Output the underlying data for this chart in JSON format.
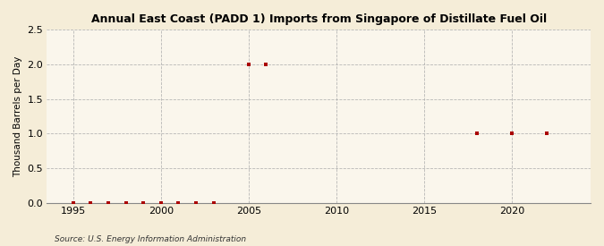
{
  "title": "Annual East Coast (PADD 1) Imports from Singapore of Distillate Fuel Oil",
  "ylabel": "Thousand Barrels per Day",
  "source": "Source: U.S. Energy Information Administration",
  "background_color": "#f5edd8",
  "plot_background_color": "#faf6ec",
  "marker_color": "#aa0000",
  "marker_size": 3.5,
  "xlim": [
    1993.5,
    2024.5
  ],
  "ylim": [
    0.0,
    2.5
  ],
  "yticks": [
    0.0,
    0.5,
    1.0,
    1.5,
    2.0,
    2.5
  ],
  "xticks": [
    1995,
    2000,
    2005,
    2010,
    2015,
    2020
  ],
  "years": [
    1995,
    1996,
    1997,
    1998,
    1999,
    2000,
    2001,
    2002,
    2003,
    2005,
    2006,
    2018,
    2020,
    2022
  ],
  "values": [
    0.0,
    0.0,
    0.0,
    0.0,
    0.0,
    0.0,
    0.0,
    0.0,
    0.0,
    2.0,
    2.0,
    1.0,
    1.0,
    1.0
  ]
}
